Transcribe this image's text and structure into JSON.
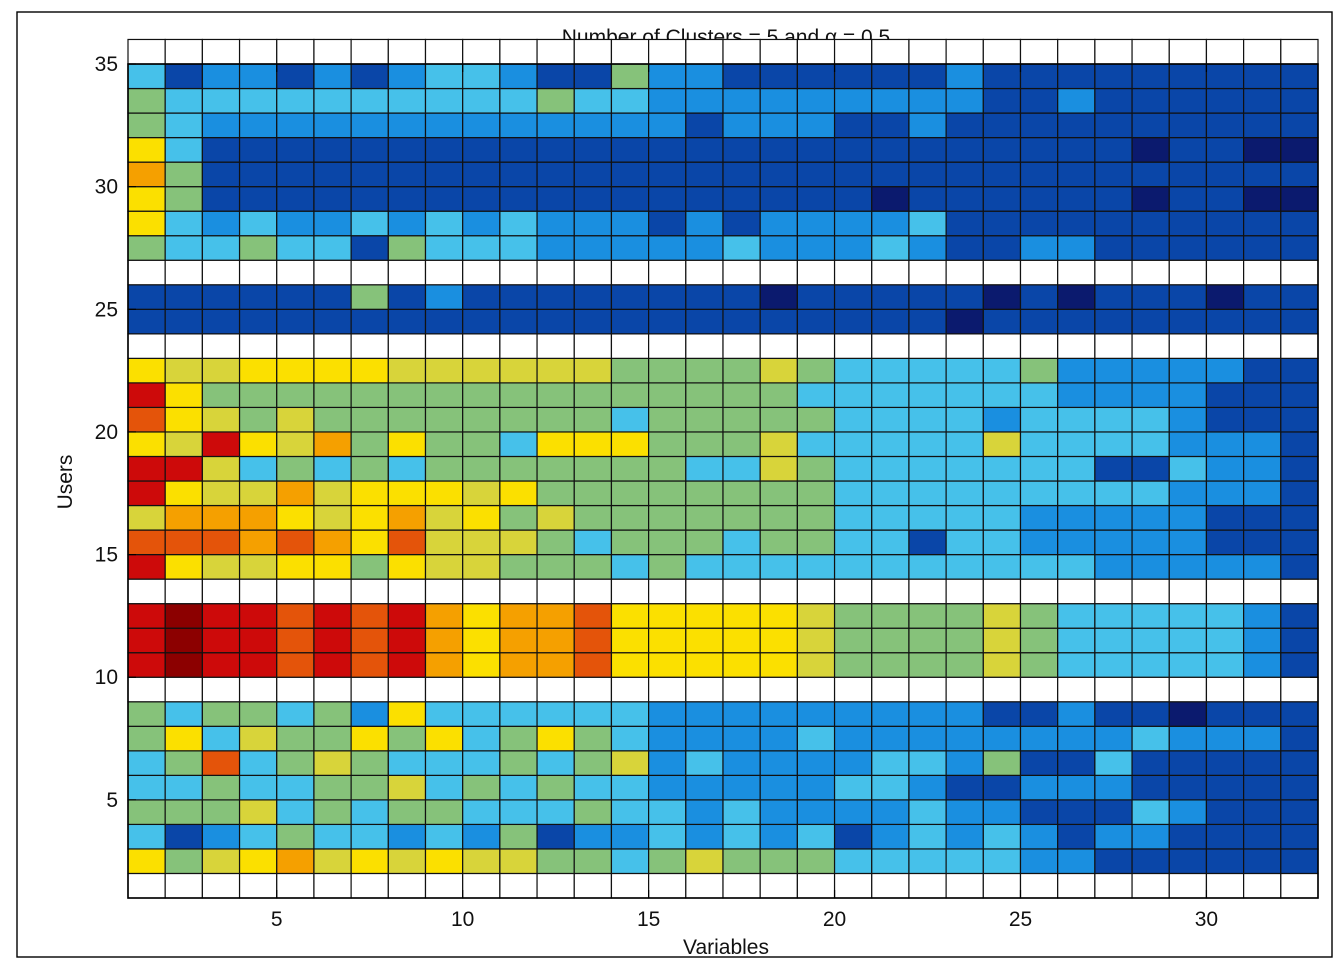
{
  "chart_data": {
    "type": "heatmap",
    "title": "Number of Clusters = 5 and α = 0.5",
    "xlabel": "Variables",
    "ylabel": "Users",
    "xlim": [
      1,
      33
    ],
    "ylim": [
      1,
      35
    ],
    "x_ticks": [
      5,
      10,
      15,
      20,
      25,
      30
    ],
    "y_ticks": [
      5,
      10,
      15,
      20,
      25,
      30,
      35
    ],
    "colormap": "jet",
    "color_scale": [
      "#0b1a6e",
      "#0a46a8",
      "#1a8fe0",
      "#46c1ea",
      "#86c27a",
      "#d8d43a",
      "#fbe000",
      "#f5a000",
      "#e4540a",
      "#cd0a0a",
      "#8c0000"
    ],
    "separator_rows_white": true,
    "rows_bottom_to_top": [
      [],
      [
        6,
        4,
        5,
        6,
        7,
        5,
        6,
        5,
        6,
        5,
        5,
        4,
        4,
        3,
        4,
        5,
        4,
        4,
        4,
        3,
        3,
        3,
        3,
        3,
        2,
        2,
        1,
        1,
        1,
        1,
        1,
        1
      ],
      [
        3,
        1,
        2,
        3,
        4,
        3,
        3,
        2,
        3,
        2,
        4,
        1,
        2,
        2,
        3,
        2,
        3,
        2,
        3,
        1,
        2,
        3,
        2,
        3,
        2,
        1,
        2,
        2,
        1,
        1,
        1,
        1
      ],
      [
        4,
        4,
        4,
        5,
        3,
        4,
        3,
        4,
        4,
        3,
        3,
        3,
        4,
        3,
        3,
        2,
        3,
        2,
        2,
        2,
        2,
        3,
        2,
        2,
        1,
        1,
        1,
        3,
        2,
        1,
        1,
        1
      ],
      [
        3,
        3,
        4,
        3,
        3,
        4,
        4,
        5,
        3,
        4,
        3,
        4,
        3,
        3,
        2,
        2,
        2,
        2,
        2,
        3,
        3,
        2,
        1,
        1,
        2,
        2,
        2,
        1,
        1,
        1,
        1,
        1
      ],
      [
        3,
        4,
        8,
        3,
        4,
        5,
        4,
        3,
        3,
        3,
        4,
        3,
        4,
        5,
        2,
        3,
        2,
        2,
        2,
        2,
        3,
        3,
        2,
        4,
        1,
        1,
        3,
        1,
        1,
        1,
        1,
        1
      ],
      [
        4,
        6,
        3,
        5,
        4,
        4,
        6,
        4,
        6,
        3,
        4,
        6,
        4,
        3,
        2,
        2,
        2,
        2,
        3,
        2,
        2,
        2,
        2,
        2,
        2,
        2,
        2,
        3,
        2,
        2,
        2,
        1
      ],
      [
        4,
        3,
        4,
        4,
        3,
        4,
        2,
        6,
        3,
        3,
        3,
        3,
        3,
        3,
        2,
        2,
        2,
        2,
        2,
        2,
        2,
        2,
        2,
        1,
        1,
        2,
        1,
        1,
        0,
        1,
        1,
        1
      ],
      [],
      [
        9,
        10,
        9,
        9,
        8,
        9,
        8,
        9,
        7,
        6,
        7,
        7,
        8,
        6,
        6,
        6,
        6,
        6,
        5,
        4,
        4,
        4,
        4,
        5,
        4,
        3,
        3,
        3,
        3,
        3,
        2,
        1
      ],
      [
        9,
        10,
        9,
        9,
        8,
        9,
        8,
        9,
        7,
        6,
        7,
        7,
        8,
        6,
        6,
        6,
        6,
        6,
        5,
        4,
        4,
        4,
        4,
        5,
        4,
        3,
        3,
        3,
        3,
        3,
        2,
        1
      ],
      [
        9,
        10,
        9,
        9,
        8,
        9,
        8,
        9,
        7,
        6,
        7,
        7,
        8,
        6,
        6,
        6,
        6,
        6,
        5,
        4,
        4,
        4,
        4,
        5,
        4,
        3,
        3,
        3,
        3,
        3,
        2,
        1
      ],
      [],
      [
        9,
        6,
        5,
        5,
        6,
        6,
        4,
        6,
        5,
        5,
        4,
        4,
        4,
        3,
        4,
        3,
        3,
        3,
        3,
        3,
        3,
        3,
        3,
        3,
        3,
        3,
        2,
        2,
        2,
        2,
        2,
        1
      ],
      [
        8,
        8,
        8,
        7,
        8,
        7,
        6,
        8,
        5,
        5,
        5,
        4,
        3,
        4,
        4,
        4,
        3,
        4,
        4,
        3,
        3,
        1,
        3,
        3,
        2,
        2,
        2,
        2,
        2,
        1,
        1,
        1
      ],
      [
        5,
        7,
        7,
        7,
        6,
        5,
        6,
        7,
        5,
        6,
        4,
        5,
        4,
        4,
        4,
        4,
        4,
        4,
        4,
        3,
        3,
        3,
        3,
        3,
        2,
        2,
        2,
        2,
        2,
        1,
        1,
        1
      ],
      [
        9,
        6,
        5,
        5,
        7,
        5,
        6,
        6,
        6,
        5,
        6,
        4,
        4,
        4,
        4,
        4,
        4,
        4,
        4,
        3,
        3,
        3,
        3,
        3,
        3,
        3,
        3,
        3,
        2,
        2,
        2,
        1
      ],
      [
        9,
        9,
        5,
        3,
        4,
        3,
        4,
        3,
        4,
        4,
        4,
        4,
        4,
        4,
        4,
        3,
        3,
        5,
        4,
        3,
        3,
        3,
        3,
        3,
        3,
        3,
        1,
        1,
        3,
        2,
        2,
        1
      ],
      [
        6,
        5,
        9,
        6,
        5,
        7,
        4,
        6,
        4,
        4,
        3,
        6,
        6,
        6,
        4,
        4,
        4,
        5,
        3,
        3,
        3,
        3,
        3,
        5,
        3,
        3,
        3,
        3,
        2,
        2,
        2,
        1
      ],
      [
        8,
        6,
        5,
        4,
        5,
        4,
        4,
        4,
        4,
        4,
        4,
        4,
        4,
        3,
        4,
        4,
        4,
        4,
        4,
        3,
        3,
        3,
        3,
        2,
        3,
        3,
        3,
        3,
        2,
        1,
        1,
        1
      ],
      [
        9,
        6,
        4,
        4,
        4,
        4,
        4,
        4,
        4,
        4,
        4,
        4,
        4,
        4,
        4,
        4,
        4,
        4,
        3,
        3,
        3,
        3,
        3,
        3,
        3,
        2,
        2,
        2,
        2,
        1,
        1,
        1
      ],
      [
        6,
        5,
        5,
        6,
        6,
        6,
        6,
        5,
        5,
        5,
        5,
        5,
        5,
        4,
        4,
        4,
        4,
        5,
        4,
        3,
        3,
        3,
        3,
        3,
        4,
        2,
        2,
        2,
        2,
        2,
        1,
        1
      ],
      [],
      [
        1,
        1,
        1,
        1,
        1,
        1,
        1,
        1,
        1,
        1,
        1,
        1,
        1,
        1,
        1,
        1,
        1,
        1,
        1,
        1,
        1,
        1,
        0,
        1,
        1,
        1,
        1,
        1,
        1,
        1,
        1,
        1
      ],
      [
        1,
        1,
        1,
        1,
        1,
        1,
        4,
        1,
        2,
        1,
        1,
        1,
        1,
        1,
        1,
        1,
        1,
        0,
        1,
        1,
        1,
        1,
        1,
        0,
        1,
        0,
        1,
        1,
        1,
        0,
        1,
        1
      ],
      [],
      [
        4,
        3,
        3,
        4,
        3,
        3,
        1,
        4,
        3,
        3,
        3,
        2,
        2,
        2,
        2,
        2,
        3,
        2,
        2,
        2,
        3,
        2,
        1,
        1,
        2,
        2,
        1,
        1,
        1,
        1,
        1,
        1
      ],
      [
        6,
        3,
        2,
        3,
        2,
        2,
        3,
        2,
        3,
        2,
        3,
        2,
        2,
        2,
        1,
        2,
        1,
        2,
        2,
        2,
        2,
        3,
        1,
        1,
        1,
        1,
        1,
        1,
        1,
        1,
        1,
        1
      ],
      [
        6,
        4,
        1,
        1,
        1,
        1,
        1,
        1,
        1,
        1,
        1,
        1,
        1,
        1,
        1,
        1,
        1,
        1,
        1,
        1,
        0,
        1,
        1,
        1,
        1,
        1,
        1,
        0,
        1,
        1,
        0,
        0
      ],
      [
        7,
        4,
        1,
        1,
        1,
        1,
        1,
        1,
        1,
        1,
        1,
        1,
        1,
        1,
        1,
        1,
        1,
        1,
        1,
        1,
        1,
        1,
        1,
        1,
        1,
        1,
        1,
        1,
        1,
        1,
        1,
        1
      ],
      [
        6,
        3,
        1,
        1,
        1,
        1,
        1,
        1,
        1,
        1,
        1,
        1,
        1,
        1,
        1,
        1,
        1,
        1,
        1,
        1,
        1,
        1,
        1,
        1,
        1,
        1,
        1,
        0,
        1,
        1,
        0,
        0
      ],
      [
        4,
        3,
        2,
        2,
        2,
        2,
        2,
        2,
        2,
        2,
        2,
        2,
        2,
        2,
        2,
        1,
        2,
        2,
        2,
        1,
        1,
        2,
        1,
        1,
        1,
        1,
        1,
        1,
        1,
        1,
        1,
        1
      ],
      [
        4,
        3,
        3,
        3,
        3,
        3,
        3,
        3,
        3,
        3,
        3,
        4,
        3,
        3,
        2,
        2,
        2,
        2,
        2,
        2,
        2,
        2,
        2,
        1,
        1,
        2,
        1,
        1,
        1,
        1,
        1,
        1
      ],
      [
        3,
        1,
        2,
        2,
        1,
        2,
        1,
        2,
        3,
        3,
        2,
        1,
        1,
        4,
        2,
        2,
        1,
        1,
        1,
        1,
        1,
        1,
        2,
        1,
        1,
        1,
        1,
        1,
        1,
        1,
        1,
        1
      ],
      []
    ]
  }
}
